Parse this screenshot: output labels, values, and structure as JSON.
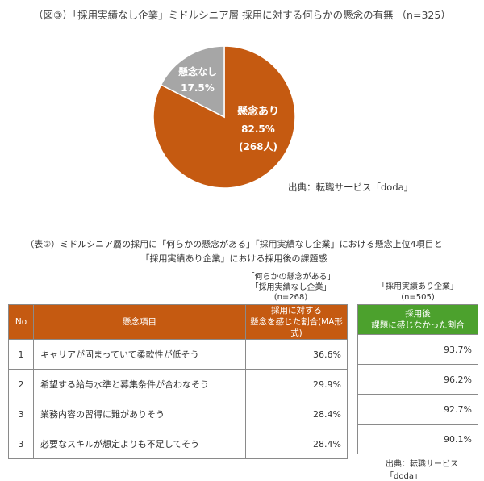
{
  "chart_data": [
    {
      "type": "pie",
      "title": "（図③）「採用実績なし企業」ミドルシニア層 採用に対する何らかの懸念の有無 （n=325）",
      "slices": [
        {
          "label": "懸念あり",
          "value": 82.5,
          "value_label": "82.5%",
          "count_label": "(268人)",
          "color": "#c55a11"
        },
        {
          "label": "懸念なし",
          "value": 17.5,
          "value_label": "17.5%",
          "color": "#a6a6a6"
        }
      ],
      "source": "出典：転職サービス「doda」"
    },
    {
      "type": "table",
      "title_lines": [
        "（表②）ミドルシニア層の採用に「何らかの懸念がある」「採用実績なし企業」における懸念上位4項目と",
        "「採用実績あり企業」における採用後の課題感"
      ],
      "left_note": [
        "「何らかの懸念がある」",
        "「採用実績なし企業」",
        "(n=268)"
      ],
      "right_note": [
        "「採用実績あり企業」",
        "(n=505)"
      ],
      "headers": {
        "no": "No",
        "item": "懸念項目",
        "concern_rate": [
          "採用に対する",
          "懸念を感じた割合(MA形式)"
        ],
        "no_issue_rate": [
          "採用後",
          "課題に感じなかった割合"
        ]
      },
      "rows": [
        {
          "no": "1",
          "item": "キャリアが固まっていて柔軟性が低そう",
          "concern_rate": "36.6%",
          "no_issue_rate": "93.7%"
        },
        {
          "no": "2",
          "item": "希望する給与水準と募集条件が合わなそう",
          "concern_rate": "29.9%",
          "no_issue_rate": "96.2%"
        },
        {
          "no": "3",
          "item": "業務内容の習得に難がありそう",
          "concern_rate": "28.4%",
          "no_issue_rate": "92.7%"
        },
        {
          "no": "3",
          "item": "必要なスキルが想定よりも不足してそう",
          "concern_rate": "28.4%",
          "no_issue_rate": "90.1%"
        }
      ],
      "colors": {
        "left_header": "#c55a11",
        "right_header": "#4ca12d"
      },
      "source": "出典：転職サービス「doda」"
    }
  ]
}
